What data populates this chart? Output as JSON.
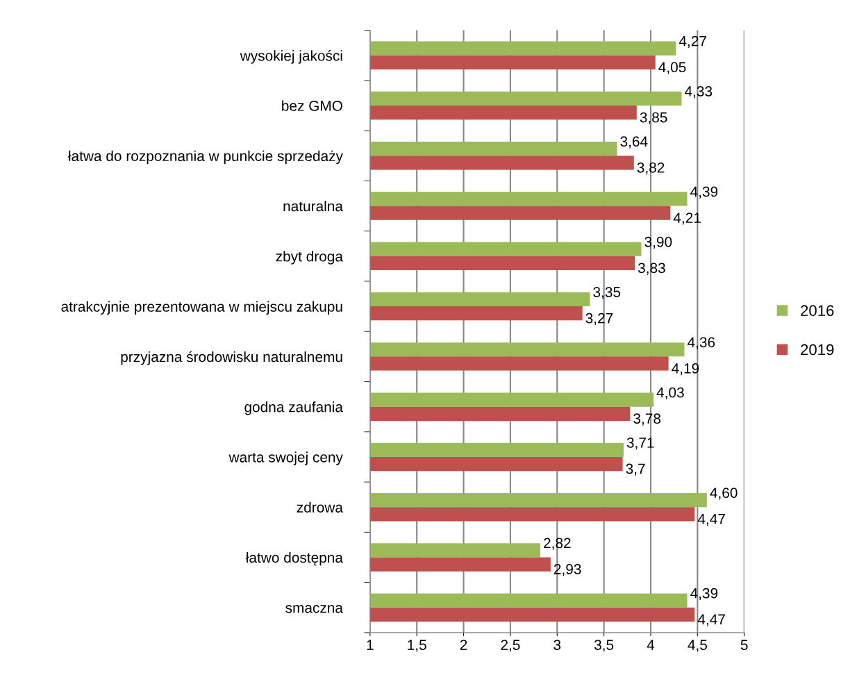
{
  "chart_data": {
    "type": "bar",
    "orientation": "horizontal",
    "categories": [
      "wysokiej jakości",
      "bez GMO",
      "łatwa do rozpoznania w punkcie sprzedaży",
      "naturalna",
      "zbyt droga",
      "atrakcyjnie prezentowana w miejscu zakupu",
      "przyjazna środowisku naturalnemu",
      "godna zaufania",
      "warta swojej ceny",
      "zdrowa",
      "łatwo dostępna",
      "smaczna"
    ],
    "series": [
      {
        "name": "2016",
        "color": "#9bbb59",
        "values": [
          4.27,
          4.33,
          3.64,
          4.39,
          3.9,
          3.35,
          4.36,
          4.03,
          3.71,
          4.6,
          2.82,
          4.39
        ],
        "value_labels": [
          "4,27",
          "4,33",
          "3,64",
          "4,39",
          "3,90",
          "3,35",
          "4,36",
          "4,03",
          "3,71",
          "4,60",
          "2,82",
          "4,39"
        ]
      },
      {
        "name": "2019",
        "color": "#c0504d",
        "values": [
          4.05,
          3.85,
          3.82,
          4.21,
          3.83,
          3.27,
          4.19,
          3.78,
          3.7,
          4.47,
          2.93,
          4.47
        ],
        "value_labels": [
          "4,05",
          "3,85",
          "3,82",
          "4,21",
          "3,83",
          "3,27",
          "4,19",
          "3,78",
          "3,7",
          "4,47",
          "2,93",
          "4,47"
        ]
      }
    ],
    "xlim": [
      1,
      5
    ],
    "xticks": [
      1,
      {
        "value": 1.5,
        "label": "1,5"
      },
      2,
      {
        "value": 2.5,
        "label": "2,5"
      },
      3,
      {
        "value": 3.5,
        "label": "3,5"
      },
      4,
      {
        "value": 4.5,
        "label": "4,5"
      },
      5
    ],
    "grid": "x",
    "legend": "right"
  }
}
